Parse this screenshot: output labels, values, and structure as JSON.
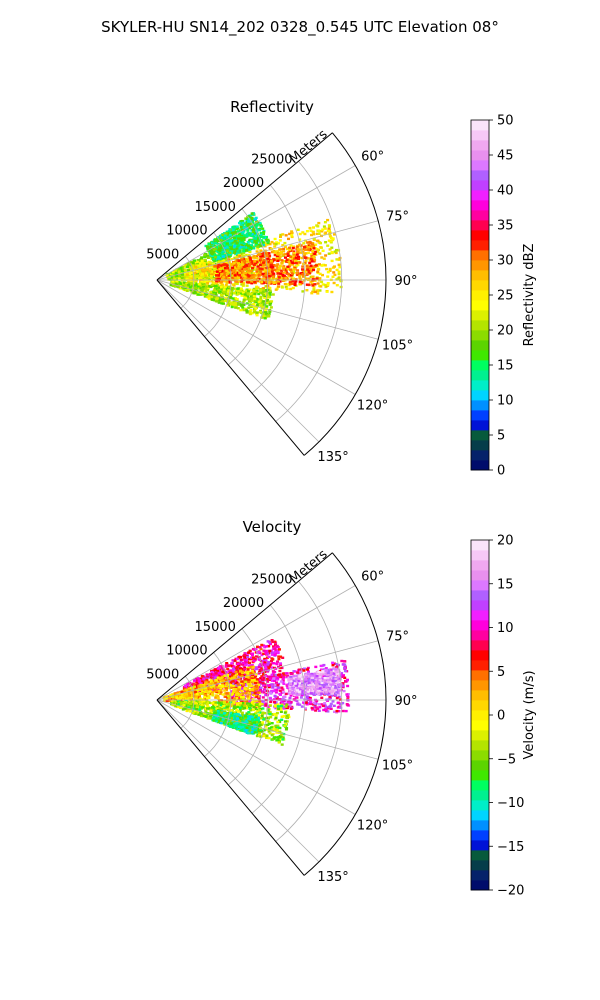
{
  "figure": {
    "title": "SKYLER-HU  SN14_202  0328_0.545 UTC Elevation 08°"
  },
  "chart_data": [
    {
      "type": "polar-sector",
      "title": "Reflectivity",
      "radial_label": "Meters",
      "radial_ticks": [
        5000,
        10000,
        15000,
        20000,
        25000
      ],
      "r_max": 31000,
      "angle_range_deg": [
        50,
        140
      ],
      "angle_ticks": [
        {
          "deg": 60,
          "label": "60°"
        },
        {
          "deg": 75,
          "label": "75°"
        },
        {
          "deg": 90,
          "label": "90°"
        },
        {
          "deg": 105,
          "label": "105°"
        },
        {
          "deg": 120,
          "label": "120°"
        },
        {
          "deg": 135,
          "label": "135°"
        }
      ],
      "grid": true,
      "colorbar": {
        "label": "Reflectivity dBZ",
        "range": [
          0,
          50
        ],
        "ticks": [
          "0",
          "5",
          "10",
          "15",
          "20",
          "25",
          "30",
          "35",
          "40",
          "45",
          "50"
        ],
        "colors": [
          "#000c6b",
          "#05226a",
          "#053d4a",
          "#075a3c",
          "#0012d6",
          "#0040ff",
          "#0090ff",
          "#00d4ff",
          "#00eec8",
          "#00f090",
          "#00ff60",
          "#40e800",
          "#5cd400",
          "#8cdc00",
          "#b4e400",
          "#dcf000",
          "#ffff00",
          "#fff000",
          "#ffd800",
          "#ffbe00",
          "#ff9600",
          "#ff7000",
          "#ff2000",
          "#ff0000",
          "#ff0050",
          "#ff00a0",
          "#ff00dc",
          "#f020ff",
          "#c040ff",
          "#b060ff",
          "#dc78ff",
          "#e890ee",
          "#f0a8f0",
          "#f6c8f6",
          "#fbe4fb"
        ]
      },
      "echo_regions": [
        {
          "a0": 62,
          "a1": 90,
          "r0": 1500,
          "r1": 13000,
          "value": 20
        },
        {
          "a0": 70,
          "a1": 95,
          "r0": 4000,
          "r1": 25000,
          "value": 25
        },
        {
          "a0": 76,
          "a1": 92,
          "r0": 8000,
          "r1": 22000,
          "value": 30
        },
        {
          "a0": 95,
          "a1": 110,
          "r0": 2000,
          "r1": 16000,
          "value": 20
        },
        {
          "a0": 55,
          "a1": 72,
          "r0": 8000,
          "r1": 16000,
          "value": 15
        }
      ]
    },
    {
      "type": "polar-sector",
      "title": "Velocity",
      "radial_label": "Meters",
      "radial_ticks": [
        5000,
        10000,
        15000,
        20000,
        25000
      ],
      "r_max": 31000,
      "angle_range_deg": [
        50,
        140
      ],
      "angle_ticks": [
        {
          "deg": 60,
          "label": "60°"
        },
        {
          "deg": 75,
          "label": "75°"
        },
        {
          "deg": 90,
          "label": "90°"
        },
        {
          "deg": 105,
          "label": "105°"
        },
        {
          "deg": 120,
          "label": "120°"
        },
        {
          "deg": 135,
          "label": "135°"
        }
      ],
      "grid": true,
      "colorbar": {
        "label": "Velocity (m/s)",
        "range": [
          -20,
          20
        ],
        "ticks": [
          "−20",
          "−15",
          "−10",
          "−5",
          "0",
          "5",
          "10",
          "15",
          "20"
        ],
        "colors": [
          "#000c6b",
          "#05226a",
          "#053d4a",
          "#075a3c",
          "#0012d6",
          "#0040ff",
          "#0090ff",
          "#00d4ff",
          "#00eec8",
          "#00f090",
          "#00ff60",
          "#40e800",
          "#5cd400",
          "#8cdc00",
          "#b4e400",
          "#dcf000",
          "#ffff00",
          "#fff000",
          "#ffd800",
          "#ffbe00",
          "#ff9600",
          "#ff7000",
          "#ff2000",
          "#ff0000",
          "#ff0050",
          "#ff00a0",
          "#ff00dc",
          "#f020ff",
          "#c040ff",
          "#b060ff",
          "#dc78ff",
          "#e890ee",
          "#f0a8f0",
          "#f6c8f6",
          "#fbe4fb"
        ]
      },
      "echo_regions": [
        {
          "a0": 62,
          "a1": 80,
          "r0": 4000,
          "r1": 18000,
          "value": 9
        },
        {
          "a0": 78,
          "a1": 94,
          "r0": 10000,
          "r1": 26000,
          "value": 11
        },
        {
          "a0": 80,
          "a1": 88,
          "r0": 18000,
          "r1": 25000,
          "value": 16
        },
        {
          "a0": 70,
          "a1": 95,
          "r0": 1000,
          "r1": 14000,
          "value": 2
        },
        {
          "a0": 92,
          "a1": 110,
          "r0": 2000,
          "r1": 18000,
          "value": -4
        },
        {
          "a0": 100,
          "a1": 110,
          "r0": 8000,
          "r1": 14000,
          "value": -8
        }
      ]
    }
  ]
}
